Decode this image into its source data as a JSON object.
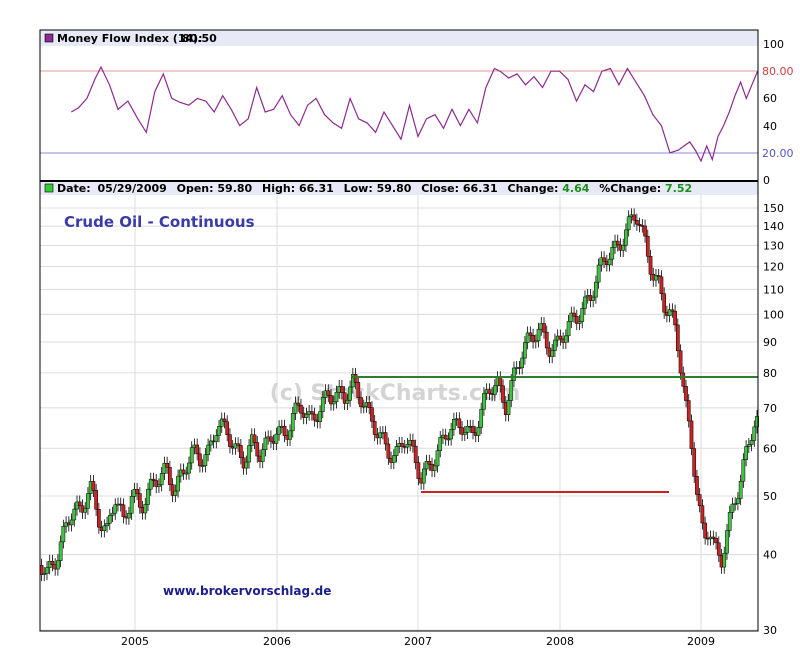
{
  "colors": {
    "background": "#ffffff",
    "header_band": "#e7e9f6",
    "frame": "#000000",
    "grid": "#dcdcdc",
    "mfi_line": "#8b2a8f",
    "mfi_swatch": "#8b2a8f",
    "ob_line": "#e39a9a",
    "ob_label": "#d04040",
    "os_line": "#8a8ad8",
    "os_label": "#5555c8",
    "up_candle": "#3ec43e",
    "down_candle": "#cc2222",
    "resistance_line": "#2e7d2e",
    "support_line": "#cc2222",
    "title_text": "#3a3aa8",
    "credit_text": "#1c1c8c",
    "watermark_text": "#cfcfcf",
    "price_swatch": "#33cc33",
    "change_positive": "#1a8f1a"
  },
  "mfi_panel": {
    "legend_name": "Money Flow Index (14):",
    "legend_value": "80.50",
    "overbought_label": "80.00",
    "oversold_label": "20.00",
    "y_ticks": [
      "100",
      "80",
      "60",
      "40",
      "20",
      "0"
    ]
  },
  "price_panel": {
    "header": {
      "date_label": "Date:",
      "date_value": "05/29/2009",
      "open_label": "Open:",
      "open_value": "59.80",
      "high_label": "High:",
      "high_value": "66.31",
      "low_label": "Low:",
      "low_value": "59.80",
      "close_label": "Close:",
      "close_value": "66.31",
      "change_label": "Change:",
      "change_value": "4.64",
      "pct_label": "%Change:",
      "pct_value": "7.52"
    },
    "title": "Crude Oil - Continuous",
    "credit": "www.brokervorschlag.de",
    "watermark": "(c) StockCharts.com",
    "y_ticks": [
      "150",
      "140",
      "130",
      "120",
      "110",
      "100",
      "90",
      "80",
      "70",
      "60",
      "50",
      "40",
      "30"
    ],
    "x_ticks": [
      "2005",
      "2006",
      "2007",
      "2008",
      "2009"
    ]
  },
  "chart_data": [
    {
      "type": "line",
      "title": "Money Flow Index (14): 80.50",
      "series": [
        {
          "name": "Money Flow Index (14)",
          "x": [
            2004.55,
            2004.6,
            2004.66,
            2004.72,
            2004.76,
            2004.82,
            2004.88,
            2004.95,
            2005.02,
            2005.08,
            2005.14,
            2005.2,
            2005.26,
            2005.32,
            2005.38,
            2005.44,
            2005.5,
            2005.56,
            2005.62,
            2005.68,
            2005.74,
            2005.8,
            2005.86,
            2005.92,
            2005.98,
            2006.04,
            2006.1,
            2006.16,
            2006.22,
            2006.28,
            2006.34,
            2006.4,
            2006.46,
            2006.52,
            2006.58,
            2006.64,
            2006.7,
            2006.76,
            2006.82,
            2006.88,
            2006.94,
            2007.0,
            2007.06,
            2007.12,
            2007.18,
            2007.24,
            2007.3,
            2007.36,
            2007.42,
            2007.48,
            2007.54,
            2007.58,
            2007.64,
            2007.7,
            2007.76,
            2007.82,
            2007.88,
            2007.94,
            2008.0,
            2008.06,
            2008.12,
            2008.18,
            2008.24,
            2008.3,
            2008.36,
            2008.42,
            2008.48,
            2008.54,
            2008.6,
            2008.66,
            2008.72,
            2008.78,
            2008.84,
            2008.88,
            2008.92,
            2008.96,
            2009.0,
            2009.04,
            2009.08,
            2009.12,
            2009.16,
            2009.2,
            2009.24,
            2009.28,
            2009.32,
            2009.36,
            2009.4
          ],
          "values": [
            50,
            53,
            60,
            75,
            83,
            70,
            52,
            58,
            45,
            35,
            65,
            78,
            60,
            57,
            55,
            60,
            58,
            50,
            62,
            52,
            40,
            45,
            68,
            50,
            52,
            62,
            48,
            40,
            55,
            60,
            48,
            42,
            38,
            60,
            45,
            42,
            35,
            50,
            40,
            30,
            55,
            32,
            45,
            48,
            38,
            52,
            40,
            52,
            42,
            68,
            82,
            80,
            75,
            78,
            70,
            76,
            68,
            80,
            80,
            74,
            58,
            70,
            65,
            80,
            82,
            70,
            82,
            72,
            62,
            48,
            40,
            20,
            22,
            25,
            28,
            22,
            14,
            25,
            15,
            32,
            40,
            50,
            62,
            72,
            60,
            70,
            80
          ]
        }
      ],
      "ylim": [
        0,
        100
      ],
      "reference_lines": [
        80,
        20
      ]
    },
    {
      "type": "candlestick",
      "title": "Crude Oil - Continuous",
      "x_ticks": [
        "2005",
        "2006",
        "2007",
        "2008",
        "2009"
      ],
      "log_scale": true,
      "ylim": [
        30,
        155
      ],
      "series": [
        {
          "name": "Crude Oil - Continuous",
          "x": [
            2004.32,
            2004.38,
            2004.44,
            2004.5,
            2004.56,
            2004.62,
            2004.68,
            2004.74,
            2004.8,
            2004.86,
            2004.92,
            2004.98,
            2005.04,
            2005.1,
            2005.16,
            2005.22,
            2005.28,
            2005.34,
            2005.4,
            2005.46,
            2005.52,
            2005.58,
            2005.64,
            2005.7,
            2005.76,
            2005.82,
            2005.88,
            2005.94,
            2006.0,
            2006.06,
            2006.12,
            2006.18,
            2006.24,
            2006.3,
            2006.36,
            2006.42,
            2006.48,
            2006.54,
            2006.6,
            2006.66,
            2006.72,
            2006.78,
            2006.84,
            2006.9,
            2006.96,
            2007.02,
            2007.08,
            2007.14,
            2007.2,
            2007.26,
            2007.32,
            2007.38,
            2007.44,
            2007.5,
            2007.56,
            2007.62,
            2007.68,
            2007.74,
            2007.8,
            2007.86,
            2007.92,
            2007.98,
            2008.04,
            2008.1,
            2008.16,
            2008.22,
            2008.28,
            2008.34,
            2008.4,
            2008.46,
            2008.5,
            2008.54,
            2008.58,
            2008.62,
            2008.66,
            2008.7,
            2008.74,
            2008.78,
            2008.82,
            2008.86,
            2008.9,
            2008.94,
            2008.98,
            2009.02,
            2009.06,
            2009.1,
            2009.14,
            2009.18,
            2009.22,
            2009.26,
            2009.3,
            2009.34,
            2009.38
          ],
          "values": [
            38,
            37,
            40,
            44,
            47,
            46,
            53,
            47,
            43,
            49,
            45,
            52,
            48,
            50,
            53,
            56,
            52,
            54,
            58,
            58,
            60,
            66,
            63,
            60,
            58,
            62,
            58,
            60,
            65,
            64,
            68,
            69,
            66,
            71,
            74,
            72,
            72,
            78,
            74,
            67,
            62,
            60,
            59,
            63,
            58,
            53,
            57,
            60,
            63,
            64,
            66,
            64,
            68,
            74,
            76,
            72,
            80,
            86,
            90,
            96,
            90,
            88,
            92,
            98,
            104,
            108,
            116,
            124,
            130,
            138,
            142,
            145,
            135,
            126,
            118,
            114,
            105,
            100,
            92,
            80,
            68,
            60,
            50,
            42,
            44,
            40,
            38,
            44,
            48,
            52,
            56,
            60,
            66
          ]
        }
      ],
      "reference_lines": [
        {
          "value": 79,
          "x_range": [
            2006.55,
            2009.4
          ]
        },
        {
          "value": 51,
          "x_range": [
            2007.02,
            2008.78
          ]
        }
      ]
    }
  ]
}
